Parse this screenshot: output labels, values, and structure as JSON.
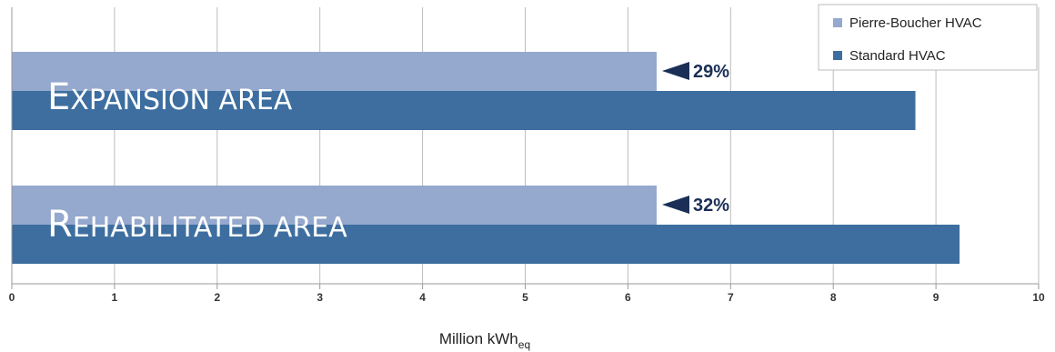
{
  "chart_data": {
    "type": "bar",
    "orientation": "horizontal",
    "categories": [
      "Expansion area",
      "Rehabilitated area"
    ],
    "category_labels": [
      {
        "first": "E",
        "rest": "XPANSION AREA"
      },
      {
        "first": "R",
        "rest": "EHABILITATED AREA"
      }
    ],
    "series": [
      {
        "name": "Pierre-Boucher HVAC",
        "values": [
          6.28,
          6.28
        ],
        "color": "#95a8ce"
      },
      {
        "name": "Standard HVAC",
        "values": [
          8.8,
          9.23
        ],
        "color": "#3d6e9f"
      }
    ],
    "annotations": [
      "29%",
      "32%"
    ],
    "xlabel": {
      "main": "Million kWh",
      "sub": "eq"
    },
    "xlim": [
      0,
      10
    ],
    "xticks": [
      "0",
      "1",
      "2",
      "3",
      "4",
      "5",
      "6",
      "7",
      "8",
      "9",
      "10"
    ],
    "grid": true,
    "legend_position": "top-right",
    "arrow_color": "#1b2f56"
  }
}
